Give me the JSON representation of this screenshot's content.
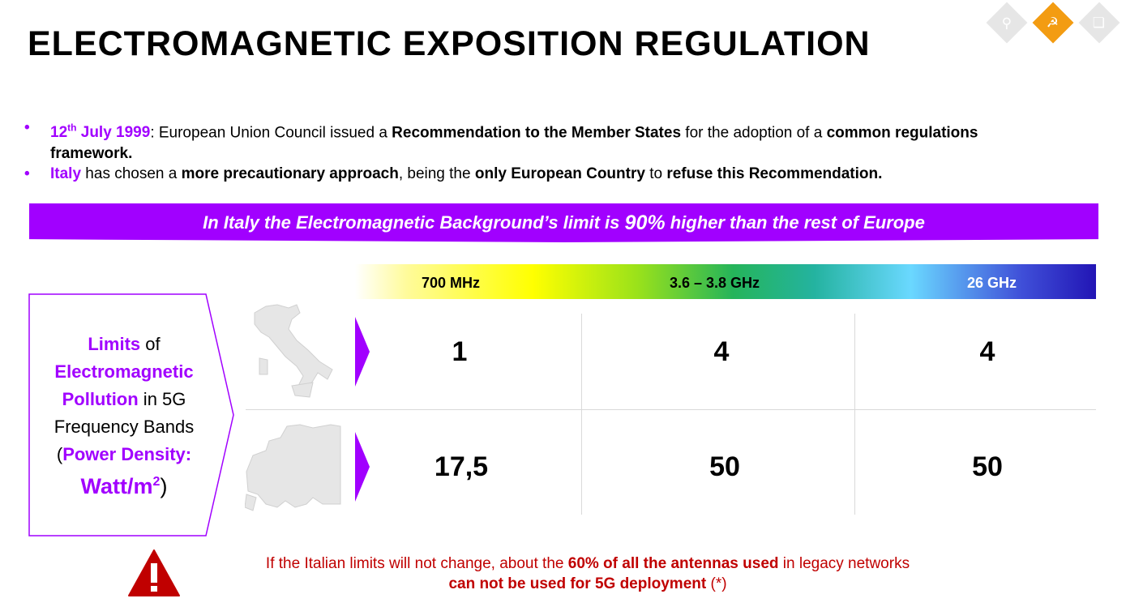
{
  "title": "ELECTROMAGNETIC EXPOSITION REGULATION",
  "nav": {
    "items": [
      {
        "icon": "search-icon",
        "color": "#e6e6e6"
      },
      {
        "icon": "satellite-dish-icon",
        "color": "#f39c12"
      },
      {
        "icon": "cube-icon",
        "color": "#e6e6e6"
      }
    ]
  },
  "bullets": [
    {
      "date": "12",
      "date_sup": "th",
      "date_rest": " July 1999",
      "t1": ": European Union Council issued a ",
      "b1": "Recommendation to the Member States",
      "t2": " for the adoption of a ",
      "b2": "common regulations framework."
    },
    {
      "country": "Italy",
      "t1": " has chosen a ",
      "b1": "more precautionary approach",
      "t2": ", being the ",
      "b2": "only European Country",
      "t3": " to ",
      "b3": "refuse this Recommendation."
    }
  ],
  "banner": {
    "pre": "In Italy the Electromagnetic Background’s limit is ",
    "highlight": "90%",
    "post": " higher than the rest of Europe"
  },
  "frequencies": [
    "700 MHz",
    "3.6 – 3.8 GHz",
    "26 GHz"
  ],
  "left_box": {
    "l1a": "Limits",
    "l1b": " of",
    "l2": "Electromagnetic",
    "l3a": "Pollution",
    "l3b": " in 5G",
    "l4": "Frequency Bands",
    "l5a": "(",
    "l5b": "Power Density:",
    "l6a": "Watt/m",
    "l6sup": "2",
    "l6b": ")"
  },
  "rows": [
    {
      "region_icon": "italy-map-icon",
      "values": [
        "1",
        "4",
        "4"
      ]
    },
    {
      "region_icon": "europe-map-icon",
      "values": [
        "17,5",
        "50",
        "50"
      ]
    }
  ],
  "note": {
    "t1": "If the Italian limits will not change, about the ",
    "b1": "60% of all the antennas used",
    "t2": " in legacy networks",
    "b2": "can not be used for 5G deployment",
    "t3": " (*)"
  },
  "colors": {
    "accent": "#a100ff",
    "warning": "#c00000",
    "nav_active": "#f39c12"
  }
}
